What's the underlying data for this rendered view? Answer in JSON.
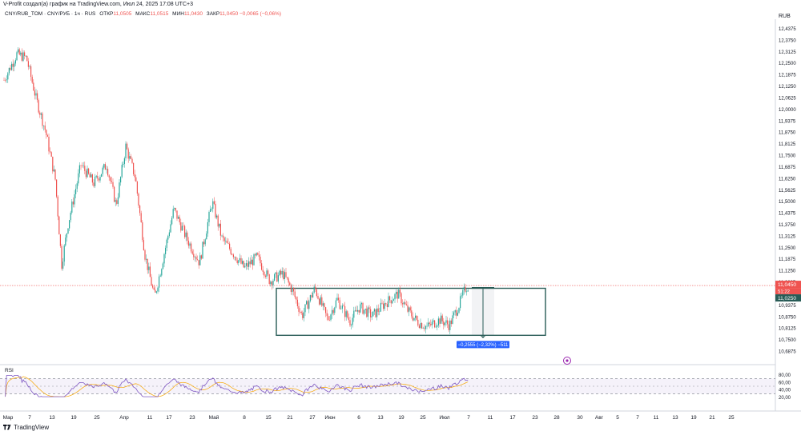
{
  "header": {
    "title": "V-Profit создал(а) график на TradingView.com, Июл 24, 2025 17:08 UTC+3",
    "symbol": "CNY/RUB_TOM · CNY/РУБ · 1ч · RUS",
    "open_label": "ОТКР",
    "open_value": "11,0505",
    "high_label": "МАКС",
    "high_value": "11,0515",
    "low_label": "МИН",
    "low_value": "11,0430",
    "close_label": "ЗАКР",
    "close_value": "11,0450",
    "change": "−0,0065 (−0,06%)"
  },
  "price_scale": {
    "unit": "RUB",
    "current_price_label": "11,0450",
    "countdown_label": "51:22",
    "second_price_label": "11,0250"
  },
  "measure": {
    "label": "−0,2555 (−2,32%) −511"
  },
  "rsi": {
    "label": "RSI",
    "ticks": [
      "80,00",
      "60,00",
      "40,00",
      "20,00"
    ]
  },
  "footer": {
    "brand": "TradingView"
  },
  "colors": {
    "up": "#26a69a",
    "down": "#ef5350",
    "rsi_line": "#7e57c2",
    "rsi_ma": "#f7a600",
    "box": "#285b56",
    "measure_label_bg": "#2962ff"
  },
  "chart_data": {
    "type": "candlestick",
    "timeframe": "1h",
    "ylim": [
      10.6875,
      12.4375
    ],
    "y_ticks": [
      "12,4375",
      "12,3750",
      "12,3125",
      "12,2500",
      "12,1875",
      "12,1250",
      "12,0625",
      "12,0000",
      "11,9375",
      "11,8750",
      "11,8125",
      "11,7500",
      "11,6875",
      "11,6250",
      "11,5625",
      "11,5000",
      "11,4375",
      "11,3750",
      "11,3125",
      "11,2500",
      "11,1875",
      "11,1250",
      "11,0625",
      "11,0000",
      "10,9375",
      "10,8750",
      "10,8125",
      "10,7500",
      "10,6875"
    ],
    "x_ticks": [
      "Мар",
      "7",
      "13",
      "19",
      "25",
      "Апр",
      "11",
      "17",
      "23",
      "Май",
      "8",
      "15",
      "21",
      "27",
      "Июн",
      "6",
      "13",
      "19",
      "25",
      "Июл",
      "7",
      "11",
      "17",
      "23",
      "28",
      "30",
      "Авг",
      "5",
      "7",
      "11",
      "13",
      "19",
      "21",
      "25"
    ],
    "price_path": [
      {
        "date": "2025-03-01",
        "close": 12.16
      },
      {
        "date": "2025-03-05",
        "close": 12.3
      },
      {
        "date": "2025-03-08",
        "close": 12.28
      },
      {
        "date": "2025-03-11",
        "close": 12.06
      },
      {
        "date": "2025-03-14",
        "close": 11.88
      },
      {
        "date": "2025-03-17",
        "close": 11.62
      },
      {
        "date": "2025-03-19",
        "close": 11.16
      },
      {
        "date": "2025-03-21",
        "close": 11.38
      },
      {
        "date": "2025-03-25",
        "close": 11.7
      },
      {
        "date": "2025-03-29",
        "close": 11.6
      },
      {
        "date": "2025-04-02",
        "close": 11.7
      },
      {
        "date": "2025-04-05",
        "close": 11.48
      },
      {
        "date": "2025-04-08",
        "close": 11.8
      },
      {
        "date": "2025-04-11",
        "close": 11.63
      },
      {
        "date": "2025-04-14",
        "close": 11.21
      },
      {
        "date": "2025-04-17",
        "close": 10.98
      },
      {
        "date": "2025-04-20",
        "close": 11.22
      },
      {
        "date": "2025-04-23",
        "close": 11.46
      },
      {
        "date": "2025-04-27",
        "close": 11.3
      },
      {
        "date": "2025-05-01",
        "close": 11.17
      },
      {
        "date": "2025-05-05",
        "close": 11.5
      },
      {
        "date": "2025-05-08",
        "close": 11.3
      },
      {
        "date": "2025-05-12",
        "close": 11.21
      },
      {
        "date": "2025-05-15",
        "close": 11.14
      },
      {
        "date": "2025-05-19",
        "close": 11.2
      },
      {
        "date": "2025-05-23",
        "close": 11.07
      },
      {
        "date": "2025-05-27",
        "close": 11.11
      },
      {
        "date": "2025-05-30",
        "close": 11.02
      },
      {
        "date": "2025-06-02",
        "close": 10.88
      },
      {
        "date": "2025-06-06",
        "close": 11.03
      },
      {
        "date": "2025-06-10",
        "close": 10.86
      },
      {
        "date": "2025-06-13",
        "close": 10.97
      },
      {
        "date": "2025-06-17",
        "close": 10.85
      },
      {
        "date": "2025-06-20",
        "close": 10.93
      },
      {
        "date": "2025-06-24",
        "close": 10.88
      },
      {
        "date": "2025-06-28",
        "close": 10.95
      },
      {
        "date": "2025-07-02",
        "close": 11.0
      },
      {
        "date": "2025-07-05",
        "close": 10.91
      },
      {
        "date": "2025-07-08",
        "close": 10.85
      },
      {
        "date": "2025-07-11",
        "close": 10.82
      },
      {
        "date": "2025-07-15",
        "close": 10.86
      },
      {
        "date": "2025-07-18",
        "close": 10.83
      },
      {
        "date": "2025-07-21",
        "close": 10.94
      },
      {
        "date": "2025-07-23",
        "close": 11.03
      },
      {
        "date": "2025-07-24",
        "close": 11.045
      }
    ],
    "range_box": {
      "start": "2025-05-25",
      "end": "2025-08-17",
      "top": 11.03,
      "bottom": 10.775
    },
    "measure_projection": {
      "start": "2025-07-25",
      "end": "2025-08-01",
      "from": 11.03,
      "to": 10.775
    },
    "rsi_series": {
      "name": "RSI",
      "ylim": [
        20,
        80
      ],
      "levels": [
        70,
        30
      ]
    }
  }
}
